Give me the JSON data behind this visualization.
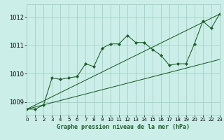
{
  "title": "Graphe pression niveau de la mer (hPa)",
  "bg_color": "#cceee8",
  "grid_color": "#99ccbb",
  "line_color": "#1a5c2a",
  "xlim": [
    0,
    23
  ],
  "ylim": [
    1008.55,
    1012.45
  ],
  "yticks": [
    1009,
    1010,
    1011,
    1012
  ],
  "xticks": [
    0,
    1,
    2,
    3,
    4,
    5,
    6,
    7,
    8,
    9,
    10,
    11,
    12,
    13,
    14,
    15,
    16,
    17,
    18,
    19,
    20,
    21,
    22,
    23
  ],
  "series_main": [
    [
      0,
      1008.75
    ],
    [
      1,
      1008.75
    ],
    [
      2,
      1008.9
    ],
    [
      3,
      1009.85
    ],
    [
      4,
      1009.8
    ],
    [
      5,
      1009.85
    ],
    [
      6,
      1009.9
    ],
    [
      7,
      1010.35
    ],
    [
      8,
      1010.25
    ],
    [
      9,
      1010.9
    ],
    [
      10,
      1011.05
    ],
    [
      11,
      1011.05
    ],
    [
      12,
      1011.35
    ],
    [
      13,
      1011.1
    ],
    [
      14,
      1011.1
    ],
    [
      15,
      1010.85
    ],
    [
      16,
      1010.65
    ],
    [
      17,
      1010.3
    ],
    [
      18,
      1010.35
    ],
    [
      19,
      1010.35
    ],
    [
      20,
      1011.05
    ],
    [
      21,
      1011.85
    ],
    [
      22,
      1011.6
    ],
    [
      23,
      1012.1
    ]
  ],
  "series_low": [
    [
      0,
      1008.75
    ],
    [
      23,
      1010.5
    ]
  ],
  "series_high": [
    [
      0,
      1008.75
    ],
    [
      23,
      1012.1
    ]
  ]
}
